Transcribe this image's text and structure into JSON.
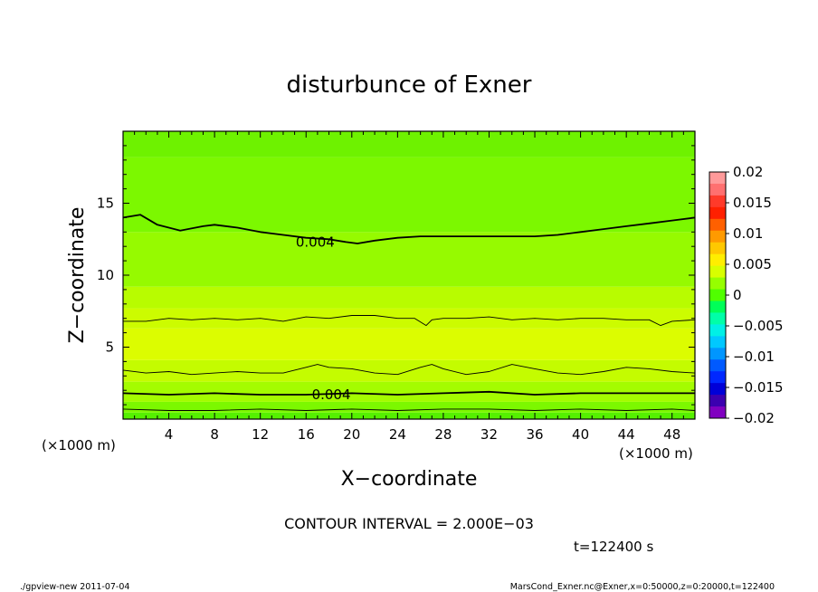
{
  "chart_data": {
    "type": "heatmap",
    "title": "disturbunce of Exner",
    "xlabel": "X−coordinate",
    "ylabel": "Z−coordinate",
    "x_unit_left": "(×1000 m)",
    "x_unit_right": "(×1000 m)",
    "xlim": [
      0,
      50
    ],
    "ylim": [
      0,
      20
    ],
    "x_ticks": [
      4,
      8,
      12,
      16,
      20,
      24,
      28,
      32,
      36,
      40,
      44,
      48
    ],
    "y_ticks": [
      5,
      10,
      15
    ],
    "contour_labels": [
      {
        "text": "0.004",
        "x": 16.8,
        "z": 12.3
      },
      {
        "text": "0.004",
        "x": 18.2,
        "z": 1.7
      }
    ],
    "contour_lines": [
      {
        "level": 0.004,
        "bold": true,
        "x": [
          0,
          1.5,
          3,
          5,
          7,
          8,
          10,
          12,
          14,
          16,
          18,
          19.5,
          20.5,
          22,
          24,
          26,
          28,
          30,
          32,
          34,
          36,
          38,
          40,
          42,
          44,
          46,
          48,
          50
        ],
        "z": [
          14.0,
          14.2,
          13.5,
          13.1,
          13.4,
          13.5,
          13.3,
          13.0,
          12.8,
          12.6,
          12.5,
          12.3,
          12.2,
          12.4,
          12.6,
          12.7,
          12.7,
          12.7,
          12.7,
          12.7,
          12.7,
          12.8,
          13.0,
          13.2,
          13.4,
          13.6,
          13.8,
          14.0
        ]
      },
      {
        "level": 0.006,
        "bold": false,
        "x": [
          0,
          2,
          4,
          6,
          8,
          10,
          12,
          14,
          16,
          18,
          20,
          22,
          24,
          25.5,
          26.5,
          27,
          28,
          30,
          32,
          34,
          36,
          38,
          40,
          42,
          44,
          46,
          47,
          48,
          50
        ],
        "z": [
          6.8,
          6.8,
          7.0,
          6.9,
          7.0,
          6.9,
          7.0,
          6.8,
          7.1,
          7.0,
          7.2,
          7.2,
          7.0,
          7.0,
          6.5,
          6.9,
          7.0,
          7.0,
          7.1,
          6.9,
          7.0,
          6.9,
          7.0,
          7.0,
          6.9,
          6.9,
          6.5,
          6.8,
          6.9
        ]
      },
      {
        "level": 0.006,
        "bold": false,
        "x": [
          0,
          2,
          4,
          6,
          8,
          10,
          12,
          14,
          16,
          17,
          18,
          20,
          22,
          24,
          26,
          27,
          28,
          30,
          32,
          34,
          36,
          38,
          40,
          42,
          44,
          46,
          48,
          50
        ],
        "z": [
          3.4,
          3.2,
          3.3,
          3.1,
          3.2,
          3.3,
          3.2,
          3.2,
          3.6,
          3.8,
          3.6,
          3.5,
          3.2,
          3.1,
          3.6,
          3.8,
          3.5,
          3.1,
          3.3,
          3.8,
          3.5,
          3.2,
          3.1,
          3.3,
          3.6,
          3.5,
          3.3,
          3.2
        ]
      },
      {
        "level": 0.004,
        "bold": true,
        "x": [
          0,
          4,
          8,
          12,
          16,
          20,
          24,
          28,
          32,
          36,
          40,
          44,
          48,
          50
        ],
        "z": [
          1.8,
          1.7,
          1.8,
          1.7,
          1.7,
          1.8,
          1.7,
          1.8,
          1.9,
          1.7,
          1.8,
          1.8,
          1.8,
          1.8
        ]
      },
      {
        "level": 0.002,
        "bold": false,
        "x": [
          0,
          4,
          8,
          12,
          16,
          20,
          24,
          28,
          32,
          36,
          40,
          44,
          48,
          50
        ],
        "z": [
          0.7,
          0.6,
          0.6,
          0.7,
          0.6,
          0.7,
          0.6,
          0.7,
          0.7,
          0.6,
          0.7,
          0.6,
          0.7,
          0.6
        ]
      }
    ],
    "colorbar": {
      "labels": [
        "0.02",
        "0.015",
        "0.01",
        "0.005",
        "0",
        "−0.005",
        "−0.01",
        "−0.015",
        "−0.02"
      ],
      "colors": [
        "#ff9a9a",
        "#ff7070",
        "#ff3a2a",
        "#ff2000",
        "#ff6000",
        "#ff9a00",
        "#ffc800",
        "#ffee00",
        "#d8ff00",
        "#96ff00",
        "#50ff00",
        "#00ff58",
        "#00ffa8",
        "#00f0e6",
        "#00c8ff",
        "#0096ff",
        "#005aff",
        "#0028ff",
        "#0000d8",
        "#3c00b0",
        "#8000c0"
      ]
    },
    "band_colors": [
      {
        "from": 0,
        "to": 0.45,
        "color": "#55f000"
      },
      {
        "from": 0.45,
        "to": 1.2,
        "color": "#7cf800"
      },
      {
        "from": 1.2,
        "to": 2.6,
        "color": "#a4fc00"
      },
      {
        "from": 2.6,
        "to": 4.1,
        "color": "#c4fc00"
      },
      {
        "from": 4.1,
        "to": 6.3,
        "color": "#dcfd00"
      },
      {
        "from": 6.3,
        "to": 7.7,
        "color": "#ccfc00"
      },
      {
        "from": 7.7,
        "to": 9.2,
        "color": "#b8fc00"
      },
      {
        "from": 9.2,
        "to": 13.0,
        "color": "#96fa00"
      },
      {
        "from": 13.0,
        "to": 18.2,
        "color": "#7cf800"
      },
      {
        "from": 18.2,
        "to": 20,
        "color": "#6ef200"
      }
    ]
  },
  "contour_interval_text": "CONTOUR INTERVAL = 2.000E−03",
  "time_text": "t=122400  s",
  "footer_left": "./gpview-new   2011-07-04",
  "footer_right": "MarsCond_Exner.nc@Exner,x=0:50000,z=0:20000,t=122400"
}
